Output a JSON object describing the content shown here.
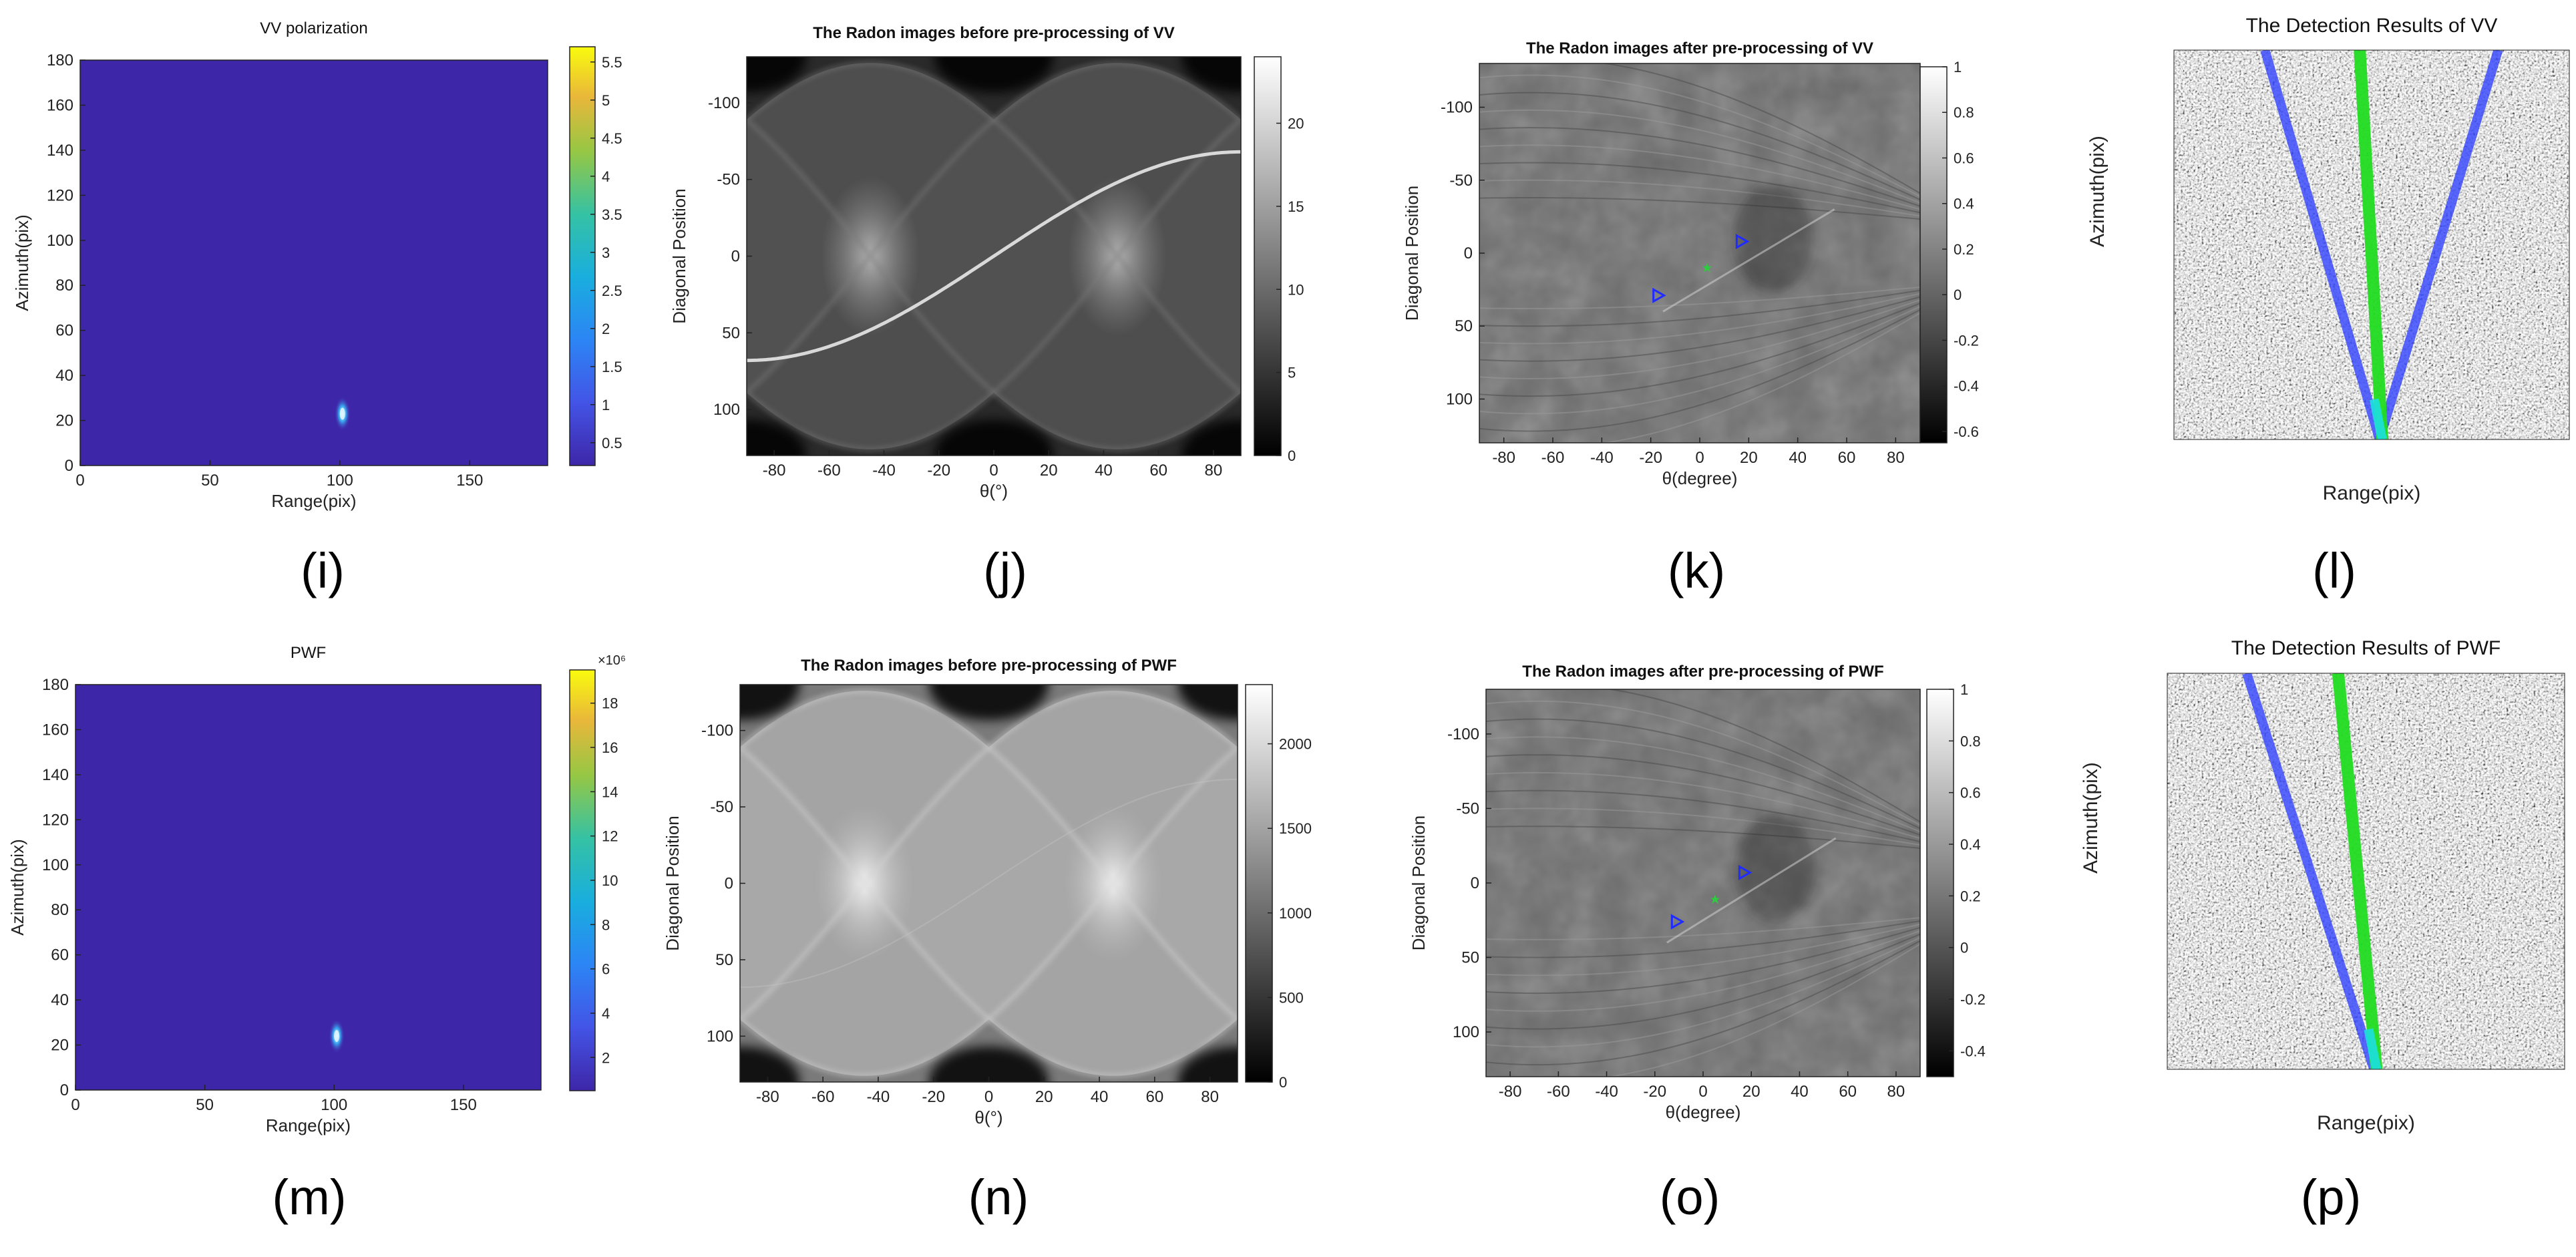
{
  "captions": [
    "(i)",
    "(j)",
    "(k)",
    "(l)",
    "(m)",
    "(n)",
    "(o)",
    "(p)"
  ],
  "chart_data": [
    {
      "id": "i",
      "type": "heatmap",
      "title": "VV polarization",
      "xlabel": "Range(pix)",
      "ylabel": "Azimuth(pix)",
      "xlim": [
        0,
        180
      ],
      "ylim": [
        0,
        180
      ],
      "x_ticks": [
        0,
        50,
        100,
        150
      ],
      "y_ticks": [
        0,
        20,
        40,
        60,
        80,
        100,
        120,
        140,
        160,
        180
      ],
      "colorbar": {
        "min": 0.2,
        "max": 5.7,
        "ticks": [
          0.5,
          1,
          1.5,
          2,
          2.5,
          3,
          3.5,
          4,
          4.5,
          5,
          5.5
        ],
        "multiplier": ""
      },
      "colormap": "parula",
      "background_color": "#3e26a8",
      "hotspot": {
        "x": 101,
        "y": 23
      }
    },
    {
      "id": "j",
      "type": "heatmap",
      "title": "The Radon images before pre-processing of VV",
      "xlabel": "θ(°)",
      "ylabel": "Diagonal Position",
      "xlim": [
        -90,
        90
      ],
      "ylim": [
        -130,
        130
      ],
      "x_ticks": [
        -80,
        -60,
        -40,
        -20,
        0,
        20,
        40,
        60,
        80
      ],
      "y_ticks": [
        -100,
        -50,
        0,
        50,
        100
      ],
      "colorbar": {
        "min": 0,
        "max": 24,
        "ticks": [
          0,
          5,
          10,
          15,
          20
        ]
      },
      "colormap": "gray"
    },
    {
      "id": "k",
      "type": "heatmap",
      "title": "The Radon images after pre-processing of VV",
      "xlabel": "θ(degree)",
      "ylabel": "Diagonal Position",
      "xlim": [
        -90,
        90
      ],
      "ylim": [
        -130,
        130
      ],
      "x_ticks": [
        -80,
        -60,
        -40,
        -20,
        0,
        20,
        40,
        60,
        80
      ],
      "y_ticks": [
        -100,
        -50,
        0,
        50,
        100
      ],
      "colorbar": {
        "min": -0.65,
        "max": 1,
        "ticks": [
          -0.6,
          -0.4,
          -0.2,
          0,
          0.2,
          0.4,
          0.6,
          0.8,
          1
        ]
      },
      "colormap": "gray",
      "markers": [
        {
          "shape": "triangle",
          "color": "#1f2bff",
          "x": 17,
          "y": -8
        },
        {
          "shape": "triangle",
          "color": "#1f2bff",
          "x": -17,
          "y": 29
        },
        {
          "shape": "star",
          "color": "#2ecc40",
          "x": 3,
          "y": 10
        }
      ]
    },
    {
      "id": "l",
      "type": "image",
      "title": "The Detection Results of VV",
      "xlabel": "Range(pix)",
      "ylabel": "Azimuth(pix)",
      "line_colors": {
        "detected": "#3344ff",
        "reference": "#22dd22"
      }
    },
    {
      "id": "m",
      "type": "heatmap",
      "title": "PWF",
      "xlabel": "Range(pix)",
      "ylabel": "Azimuth(pix)",
      "xlim": [
        0,
        180
      ],
      "ylim": [
        0,
        180
      ],
      "x_ticks": [
        0,
        50,
        100,
        150
      ],
      "y_ticks": [
        0,
        20,
        40,
        60,
        80,
        100,
        120,
        140,
        160,
        180
      ],
      "colorbar": {
        "min": 0.5,
        "max": 19.5,
        "ticks": [
          2,
          4,
          6,
          8,
          10,
          12,
          14,
          16,
          18
        ],
        "multiplier": "×10⁶"
      },
      "colormap": "parula",
      "background_color": "#3e26a8",
      "hotspot": {
        "x": 101,
        "y": 24
      }
    },
    {
      "id": "n",
      "type": "heatmap",
      "title": "The Radon images before pre-processing of PWF",
      "xlabel": "θ(°)",
      "ylabel": "Diagonal Position",
      "xlim": [
        -90,
        90
      ],
      "ylim": [
        -130,
        130
      ],
      "x_ticks": [
        -80,
        -60,
        -40,
        -20,
        0,
        20,
        40,
        60,
        80
      ],
      "y_ticks": [
        -100,
        -50,
        0,
        50,
        100
      ],
      "colorbar": {
        "min": 0,
        "max": 2350,
        "ticks": [
          0,
          500,
          1000,
          1500,
          2000
        ]
      },
      "colormap": "gray"
    },
    {
      "id": "o",
      "type": "heatmap",
      "title": "The Radon images after pre-processing of PWF",
      "xlabel": "θ(degree)",
      "ylabel": "Diagonal Position",
      "xlim": [
        -90,
        90
      ],
      "ylim": [
        -130,
        130
      ],
      "x_ticks": [
        -80,
        -60,
        -40,
        -20,
        0,
        20,
        40,
        60,
        80
      ],
      "y_ticks": [
        -100,
        -50,
        0,
        50,
        100
      ],
      "colorbar": {
        "min": -0.5,
        "max": 1,
        "ticks": [
          -0.4,
          -0.2,
          0,
          0.2,
          0.4,
          0.6,
          0.8,
          1
        ]
      },
      "colormap": "gray",
      "markers": [
        {
          "shape": "triangle",
          "color": "#1f2bff",
          "x": 17,
          "y": -7
        },
        {
          "shape": "triangle",
          "color": "#1f2bff",
          "x": -11,
          "y": 26
        },
        {
          "shape": "star",
          "color": "#2ecc40",
          "x": 5,
          "y": 11
        }
      ]
    },
    {
      "id": "p",
      "type": "image",
      "title": "The Detection Results of PWF",
      "xlabel": "Range(pix)",
      "ylabel": "Azimuth(pix)",
      "line_colors": {
        "detected": "#3344ff",
        "reference": "#22dd22"
      }
    }
  ]
}
